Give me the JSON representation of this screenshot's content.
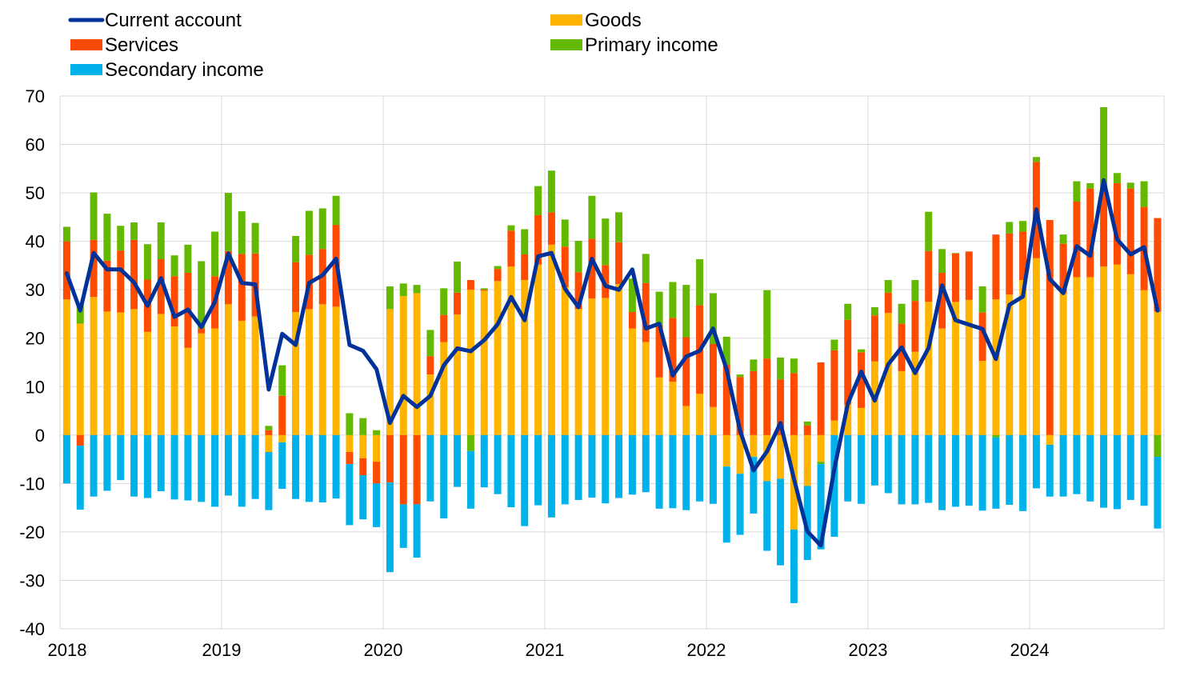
{
  "chart_data": {
    "type": "bar",
    "stacked": true,
    "categories": [
      "2018-01",
      "2018-02",
      "2018-03",
      "2018-04",
      "2018-05",
      "2018-06",
      "2018-07",
      "2018-08",
      "2018-09",
      "2018-10",
      "2018-11",
      "2018-12",
      "2019-01",
      "2019-02",
      "2019-03",
      "2019-04",
      "2019-05",
      "2019-06",
      "2019-07",
      "2019-08",
      "2019-09",
      "2019-10",
      "2019-11",
      "2019-12",
      "2020-01",
      "2020-02",
      "2020-03",
      "2020-04",
      "2020-05",
      "2020-06",
      "2020-07",
      "2020-08",
      "2020-09",
      "2020-10",
      "2020-11",
      "2020-12",
      "2021-01",
      "2021-02",
      "2021-03",
      "2021-04",
      "2021-05",
      "2021-06",
      "2021-07",
      "2021-08",
      "2021-09",
      "2021-10",
      "2021-11",
      "2021-12",
      "2022-01",
      "2022-02",
      "2022-03",
      "2022-04",
      "2022-05",
      "2022-06",
      "2022-07",
      "2022-08",
      "2022-09",
      "2022-10",
      "2022-11",
      "2022-12",
      "2023-01",
      "2023-02",
      "2023-03",
      "2023-04",
      "2023-05",
      "2023-06",
      "2023-07",
      "2023-08",
      "2023-09",
      "2023-10",
      "2023-11",
      "2023-12",
      "2024-01",
      "2024-02",
      "2024-03",
      "2024-04",
      "2024-05",
      "2024-06",
      "2024-07",
      "2024-08",
      "2024-09",
      "2024-10"
    ],
    "series": [
      {
        "name": "Goods",
        "kind": "bar",
        "color": "#FFB400",
        "values": [
          28,
          23,
          28.5,
          25.5,
          25.3,
          26,
          21.3,
          25,
          22.4,
          18,
          21,
          22,
          27,
          23.6,
          24.5,
          -3.5,
          -1.5,
          25.4,
          26,
          27,
          26.5,
          -3.5,
          -4.8,
          -5.5,
          26,
          28.7,
          29.3,
          12.5,
          19.2,
          24.9,
          30,
          29.8,
          31.8,
          34.8,
          32,
          35.2,
          39.3,
          30.5,
          26,
          28.2,
          28.3,
          31.2,
          22,
          19.2,
          11.9,
          11,
          6,
          8.5,
          5.8,
          -6.5,
          -8,
          -4.5,
          -9.5,
          -9,
          -19.5,
          -10.5,
          -5.5,
          3,
          6.3,
          5.6,
          15.2,
          25.2,
          13.2,
          17.2,
          27.5,
          22,
          27.5,
          27.9,
          15.3,
          28,
          29,
          32,
          36.5,
          -2,
          29.3,
          32.6,
          32.6,
          34.8,
          35.2,
          33.2,
          29.9,
          25.5
        ]
      },
      {
        "name": "Services",
        "kind": "bar",
        "color": "#FF4B00",
        "values": [
          12,
          -2.2,
          11.8,
          10.5,
          12.8,
          14.3,
          10.8,
          11.3,
          10.4,
          15.5,
          1,
          10.8,
          11,
          13.8,
          13,
          1,
          8.1,
          10.3,
          11.2,
          11.4,
          16.9,
          -2.5,
          -3.5,
          -4.5,
          -9.8,
          -14.3,
          -14.3,
          3.8,
          5.6,
          4.5,
          2,
          0.2,
          2.5,
          7.4,
          5.3,
          10.2,
          6.7,
          8.4,
          7.6,
          12.3,
          6.8,
          8.6,
          3.4,
          12.2,
          10.9,
          13.2,
          14.2,
          18.3,
          13,
          14.5,
          12,
          13.2,
          15.8,
          11.5,
          12.8,
          2,
          15,
          14.5,
          17.5,
          11.5,
          9.5,
          4.2,
          9.8,
          10.5,
          10.5,
          11.5,
          10,
          10,
          10,
          13.4,
          12.6,
          10,
          19.9,
          44.4,
          10.2,
          15.6,
          18.3,
          16.1,
          16.8,
          17.7,
          17.2,
          19.3
        ]
      },
      {
        "name": "Primary income",
        "kind": "bar",
        "color": "#65B800",
        "values": [
          3,
          4,
          9.8,
          9.7,
          5.1,
          3.6,
          7.3,
          7.6,
          4.3,
          5.8,
          13.9,
          9.2,
          12,
          8.8,
          6.3,
          0.9,
          6.3,
          5.4,
          9.1,
          8.4,
          6,
          4.5,
          3.5,
          1,
          4.7,
          2.6,
          1.7,
          5.4,
          5.5,
          6.4,
          -3.3,
          0.3,
          0.6,
          1.1,
          5.2,
          6,
          8.6,
          5.6,
          6.5,
          8.9,
          9.6,
          6.2,
          6.9,
          6,
          6.8,
          7.4,
          10.8,
          9.5,
          10.5,
          5.8,
          0.5,
          2.4,
          14.1,
          4.5,
          3,
          0.8,
          -0.5,
          2.2,
          3.3,
          0.6,
          1.7,
          2.6,
          4.1,
          4.3,
          8.1,
          4.9,
          0.1,
          0,
          5.4,
          -0.5,
          2.4,
          2.2,
          1,
          0,
          1.9,
          4.2,
          1.1,
          16.8,
          2.1,
          1.2,
          5.3,
          -4.5
        ]
      },
      {
        "name": "Secondary income",
        "kind": "bar",
        "color": "#00B1EA",
        "values": [
          -10,
          -13.2,
          -12.7,
          -11.5,
          -9.3,
          -12.7,
          -13,
          -11.6,
          -13.3,
          -13.5,
          -13.8,
          -14.8,
          -12.5,
          -14.8,
          -13.2,
          -12,
          -9.6,
          -13.2,
          -13.8,
          -13.9,
          -13.1,
          -12.6,
          -9.1,
          -9,
          -18.5,
          -9,
          -11,
          -13.7,
          -17.2,
          -10.7,
          -11.9,
          -10.8,
          -12.2,
          -14.9,
          -18.8,
          -14.5,
          -17,
          -14.3,
          -13.4,
          -12.9,
          -14.1,
          -13,
          -12.3,
          -11.8,
          -15.2,
          -15.1,
          -15.5,
          -13.7,
          -14.2,
          -15.7,
          -12.6,
          -11.7,
          -14.4,
          -17.9,
          -15.2,
          -15.3,
          -17.6,
          -21,
          -13.7,
          -14.2,
          -10.4,
          -12,
          -14.3,
          -14.3,
          -14,
          -15.5,
          -14.8,
          -14.6,
          -15.6,
          -14.7,
          -14.4,
          -15.7,
          -11,
          -10.7,
          -12.7,
          -12.2,
          -13.7,
          -15,
          -15.3,
          -13.4,
          -14.6,
          -14.8
        ]
      },
      {
        "name": "Current account",
        "kind": "line",
        "color": "#003299",
        "values": [
          33.4,
          25.7,
          37.6,
          34.2,
          34.2,
          31.5,
          26.7,
          32.4,
          24.4,
          25.9,
          22.3,
          27.5,
          37.5,
          31.4,
          31.1,
          9.4,
          20.9,
          18.6,
          31.4,
          33,
          36.4,
          18.6,
          17.4,
          13.6,
          2.5,
          8.1,
          5.8,
          8.1,
          14.4,
          17.9,
          17.3,
          19.6,
          22.9,
          28.5,
          23.7,
          36.9,
          37.6,
          30.2,
          26.4,
          36.4,
          30.8,
          30,
          34.2,
          22,
          23,
          12.3,
          16.2,
          17.4,
          22,
          13.6,
          0.9,
          -7.3,
          -3.4,
          2.5,
          -9,
          -19.9,
          -22.8,
          -7,
          6.5,
          13.1,
          7.1,
          14.6,
          18.1,
          12.8,
          18,
          30.9,
          23.7,
          22.8,
          21.9,
          15.7,
          26.9,
          28.6,
          46.6,
          32.2,
          29.3,
          39,
          37,
          52.6,
          40.4,
          37.3,
          38.8,
          25.7
        ]
      }
    ],
    "yaxis": {
      "min": -40,
      "max": 70,
      "step": 10
    },
    "xaxis": {
      "labels": [
        "2018",
        "2019",
        "2020",
        "2021",
        "2022",
        "2023",
        "2024"
      ]
    },
    "legend": {
      "placement": "top",
      "entries": [
        {
          "label": "Current account",
          "kind": "line",
          "color": "#003299"
        },
        {
          "label": "Goods",
          "kind": "bar",
          "color": "#FFB400"
        },
        {
          "label": "Services",
          "kind": "bar",
          "color": "#FF4B00"
        },
        {
          "label": "Primary income",
          "kind": "bar",
          "color": "#65B800"
        },
        {
          "label": "Secondary income",
          "kind": "bar",
          "color": "#00B1EA"
        }
      ]
    },
    "grid": true,
    "title": "",
    "xlabel": "",
    "ylabel": ""
  }
}
